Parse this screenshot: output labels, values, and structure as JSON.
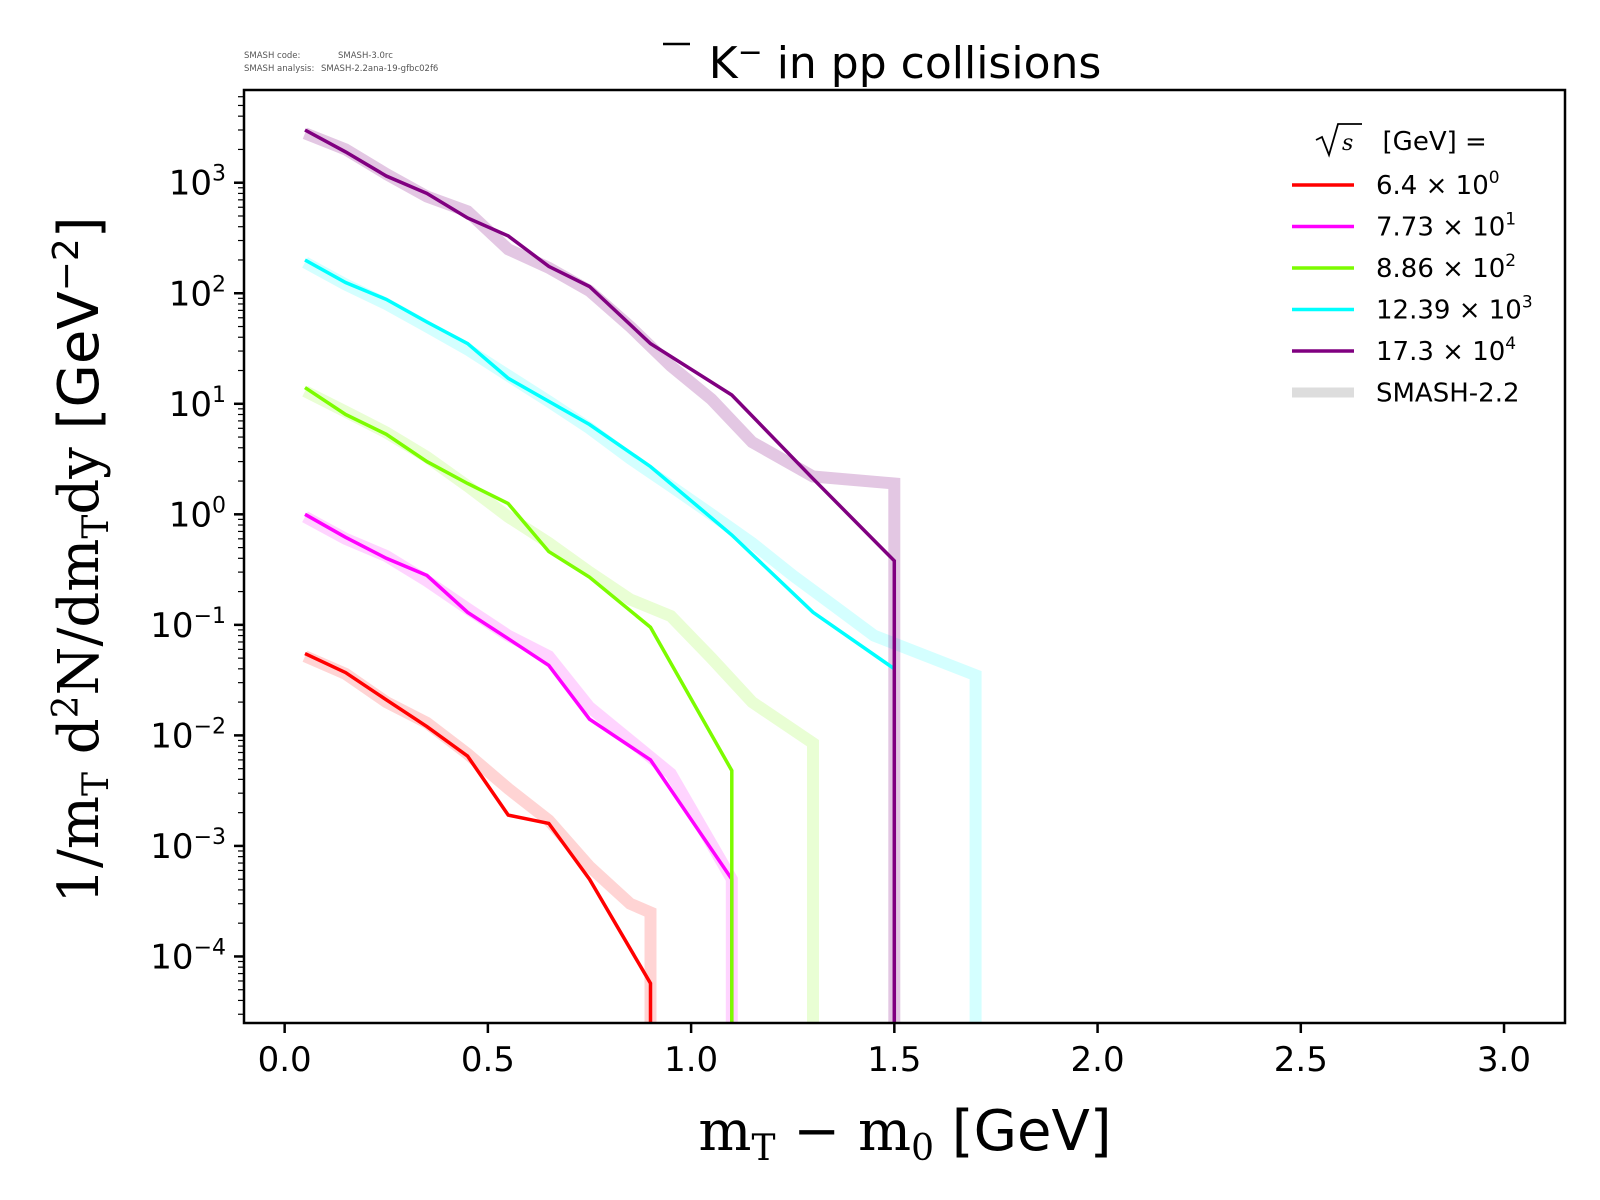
{
  "chart_data": {
    "type": "line",
    "title": "K̅⁻ in pp collisions",
    "title_parts": {
      "particle": "K",
      "charge": "−",
      "rest": " in pp collisions"
    },
    "watermark": [
      {
        "label": "SMASH code:",
        "value": "SMASH-3.0rc"
      },
      {
        "label": "SMASH analysis:",
        "value": "SMASH-2.2ana-19-gfbc02f6"
      }
    ],
    "xlabel": {
      "main": "m",
      "sub1": "T",
      "minus": " − ",
      "main2": "m",
      "sub2": "0",
      "unit": " [GeV]"
    },
    "ylabel": {
      "p1": "1/m",
      "sub1": "T",
      "p2": " d",
      "sup": "2",
      "p3": "N/dm",
      "sub2": "T",
      "p4": "dy",
      "unit_open": " [GeV",
      "unit_sup": "−2",
      "unit_close": "]"
    },
    "xlim": [
      -0.1,
      3.15
    ],
    "ylim": [
      2.5e-05,
      6900
    ],
    "yscale": "log",
    "xticks": [
      {
        "value": 0.0,
        "label": "0.0"
      },
      {
        "value": 0.5,
        "label": "0.5"
      },
      {
        "value": 1.0,
        "label": "1.0"
      },
      {
        "value": 1.5,
        "label": "1.5"
      },
      {
        "value": 2.0,
        "label": "2.0"
      },
      {
        "value": 2.5,
        "label": "2.5"
      },
      {
        "value": 3.0,
        "label": "3.0"
      }
    ],
    "yticks": [
      {
        "exp": 3,
        "label_base": "10",
        "label_exp": "3"
      },
      {
        "exp": 2,
        "label_base": "10",
        "label_exp": "2"
      },
      {
        "exp": 1,
        "label_base": "10",
        "label_exp": "1"
      },
      {
        "exp": 0,
        "label_base": "10",
        "label_exp": "0"
      },
      {
        "exp": -1,
        "label_base": "10",
        "label_exp": "−1"
      },
      {
        "exp": -2,
        "label_base": "10",
        "label_exp": "−2"
      },
      {
        "exp": -3,
        "label_base": "10",
        "label_exp": "−3"
      },
      {
        "exp": -4,
        "label_base": "10",
        "label_exp": "−4"
      }
    ],
    "grid": false,
    "legend": {
      "placement": "top-right",
      "title_sqrt": "s",
      "title_rest": "  [GeV] =",
      "entries": [
        {
          "mant": "6.4",
          "exp": "0",
          "color": "#ff0000"
        },
        {
          "mant": "7.73",
          "exp": "1",
          "color": "#ff00ff"
        },
        {
          "mant": "8.86",
          "exp": "2",
          "color": "#7cfc00"
        },
        {
          "mant": "12.39",
          "exp": "3",
          "color": "#00ffff"
        },
        {
          "mant": "17.3",
          "exp": "4",
          "color": "#800080"
        },
        {
          "label": "SMASH-2.2",
          "color": "#dddddd",
          "thick": true
        }
      ]
    },
    "series": [
      {
        "name": "6.4 x 10^0",
        "color": "#ff0000",
        "x": [
          0.05,
          0.15,
          0.25,
          0.35,
          0.45,
          0.55,
          0.65,
          0.75,
          0.9,
          0.9
        ],
        "y": [
          0.055,
          0.037,
          0.021,
          0.012,
          0.0065,
          0.0019,
          0.0016,
          0.0005,
          5.7e-05,
          0
        ],
        "ref_x": [
          0.05,
          0.15,
          0.25,
          0.35,
          0.45,
          0.55,
          0.65,
          0.75,
          0.85,
          0.9,
          0.9
        ],
        "ref_y": [
          0.052,
          0.036,
          0.02,
          0.013,
          0.0068,
          0.0033,
          0.0017,
          0.00065,
          0.0003,
          0.00025,
          0
        ]
      },
      {
        "name": "7.73 x 10^1",
        "color": "#ff00ff",
        "x": [
          0.05,
          0.15,
          0.25,
          0.35,
          0.45,
          0.55,
          0.65,
          0.75,
          0.9,
          1.1,
          1.1
        ],
        "y": [
          1.0,
          0.62,
          0.4,
          0.28,
          0.13,
          0.075,
          0.043,
          0.014,
          0.006,
          0.0005,
          0
        ],
        "ref_x": [
          0.05,
          0.15,
          0.25,
          0.35,
          0.45,
          0.55,
          0.65,
          0.75,
          0.85,
          0.95,
          1.1,
          1.1
        ],
        "ref_y": [
          0.95,
          0.6,
          0.42,
          0.25,
          0.14,
          0.08,
          0.052,
          0.018,
          0.009,
          0.0045,
          0.0005,
          0
        ]
      },
      {
        "name": "8.86 x 10^2",
        "color": "#7cfc00",
        "x": [
          0.05,
          0.15,
          0.25,
          0.35,
          0.45,
          0.55,
          0.65,
          0.75,
          0.9,
          1.1,
          1.1
        ],
        "y": [
          14,
          8,
          5.3,
          3.0,
          1.9,
          1.25,
          0.46,
          0.27,
          0.095,
          0.0048,
          0
        ],
        "ref_x": [
          0.05,
          0.15,
          0.25,
          0.35,
          0.45,
          0.55,
          0.65,
          0.75,
          0.85,
          0.95,
          1.05,
          1.15,
          1.3,
          1.3
        ],
        "ref_y": [
          13,
          8.5,
          5.5,
          3.3,
          1.8,
          0.95,
          0.55,
          0.3,
          0.17,
          0.12,
          0.05,
          0.02,
          0.0085,
          0
        ]
      },
      {
        "name": "12.39 x 10^3",
        "color": "#00ffff",
        "x": [
          0.05,
          0.15,
          0.25,
          0.35,
          0.45,
          0.55,
          0.65,
          0.75,
          0.9,
          1.1,
          1.3,
          1.5
        ],
        "y": [
          200,
          125,
          88,
          55,
          35,
          17,
          10.5,
          6.5,
          2.7,
          0.65,
          0.13,
          0.04
        ],
        "ref_x": [
          0.05,
          0.15,
          0.25,
          0.35,
          0.45,
          0.55,
          0.65,
          0.75,
          0.85,
          0.95,
          1.05,
          1.15,
          1.25,
          1.35,
          1.45,
          1.7,
          1.7
        ],
        "ref_y": [
          190,
          120,
          80,
          50,
          31,
          18,
          10.5,
          6,
          3.2,
          1.8,
          1.0,
          0.55,
          0.28,
          0.15,
          0.08,
          0.035,
          0
        ]
      },
      {
        "name": "17.3 x 10^4",
        "color": "#800080",
        "x": [
          0.05,
          0.15,
          0.25,
          0.35,
          0.45,
          0.55,
          0.65,
          0.75,
          0.9,
          1.1,
          1.3,
          1.5,
          1.5
        ],
        "y": [
          3000,
          1900,
          1150,
          800,
          480,
          330,
          175,
          115,
          35,
          12,
          2.1,
          0.38,
          0
        ],
        "ref_x": [
          0.05,
          0.15,
          0.25,
          0.35,
          0.45,
          0.55,
          0.65,
          0.75,
          0.85,
          0.95,
          1.05,
          1.15,
          1.3,
          1.5,
          1.5
        ],
        "ref_y": [
          2800,
          2000,
          1200,
          750,
          550,
          250,
          170,
          105,
          50,
          22,
          11,
          4.5,
          2.2,
          1.9,
          0
        ]
      }
    ]
  }
}
